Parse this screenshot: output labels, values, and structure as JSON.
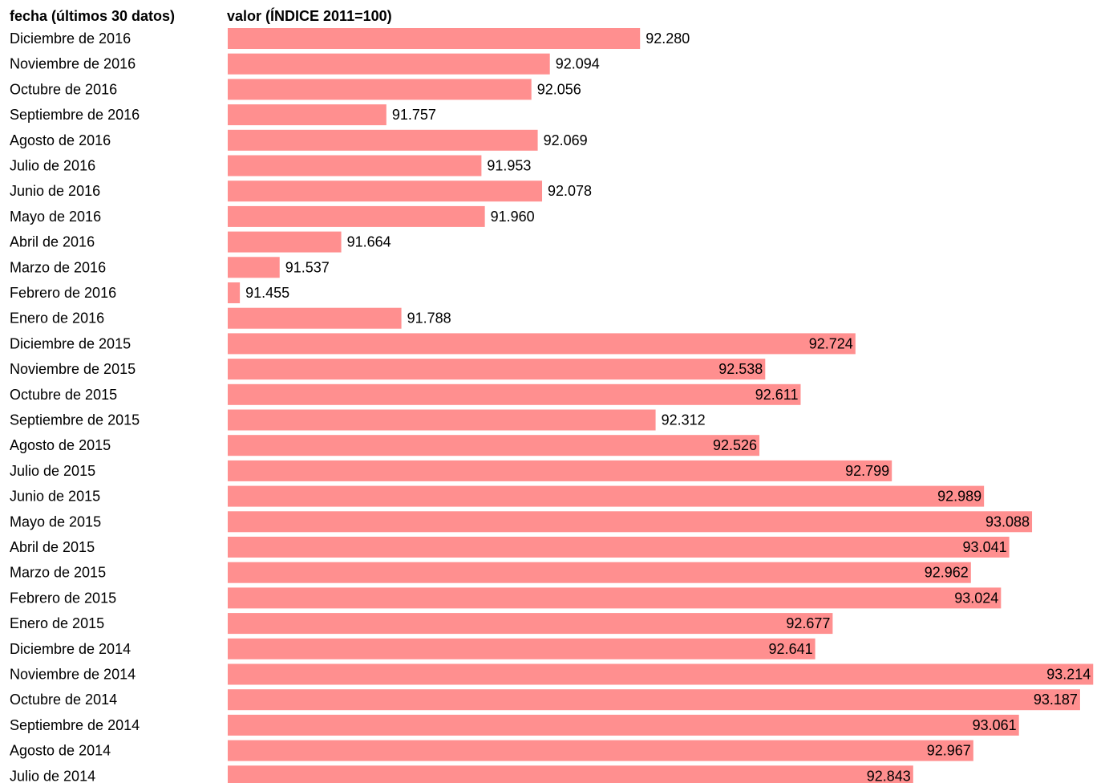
{
  "chart_data": {
    "type": "bar",
    "orientation": "horizontal",
    "category_header": "fecha (últimos 30 datos)",
    "value_header": "valor (ÍNDICE 2011=100)",
    "bar_color": "#ff8f8f",
    "xlim": [
      91.43,
      93.24
    ],
    "categories": [
      "Diciembre de 2016",
      "Noviembre de 2016",
      "Octubre de 2016",
      "Septiembre de 2016",
      "Agosto de 2016",
      "Julio de 2016",
      "Junio de 2016",
      "Mayo de 2016",
      "Abril de 2016",
      "Marzo de 2016",
      "Febrero de 2016",
      "Enero de 2016",
      "Diciembre de 2015",
      "Noviembre de 2015",
      "Octubre de 2015",
      "Septiembre de 2015",
      "Agosto de 2015",
      "Julio de 2015",
      "Junio de 2015",
      "Mayo de 2015",
      "Abril de 2015",
      "Marzo de 2015",
      "Febrero de 2015",
      "Enero de 2015",
      "Diciembre de 2014",
      "Noviembre de 2014",
      "Octubre de 2014",
      "Septiembre de 2014",
      "Agosto de 2014",
      "Julio de 2014"
    ],
    "values": [
      92.28,
      92.094,
      92.056,
      91.757,
      92.069,
      91.953,
      92.078,
      91.96,
      91.664,
      91.537,
      91.455,
      91.788,
      92.724,
      92.538,
      92.611,
      92.312,
      92.526,
      92.799,
      92.989,
      93.088,
      93.041,
      92.962,
      93.024,
      92.677,
      92.641,
      93.214,
      93.187,
      93.061,
      92.967,
      92.843
    ],
    "value_labels": [
      "92.280",
      "92.094",
      "92.056",
      "91.757",
      "92.069",
      "91.953",
      "92.078",
      "91.960",
      "91.664",
      "91.537",
      "91.455",
      "91.788",
      "92.724",
      "92.538",
      "92.611",
      "92.312",
      "92.526",
      "92.799",
      "92.989",
      "93.088",
      "93.041",
      "92.962",
      "93.024",
      "92.677",
      "92.641",
      "93.214",
      "93.187",
      "93.061",
      "92.967",
      "92.843"
    ]
  }
}
